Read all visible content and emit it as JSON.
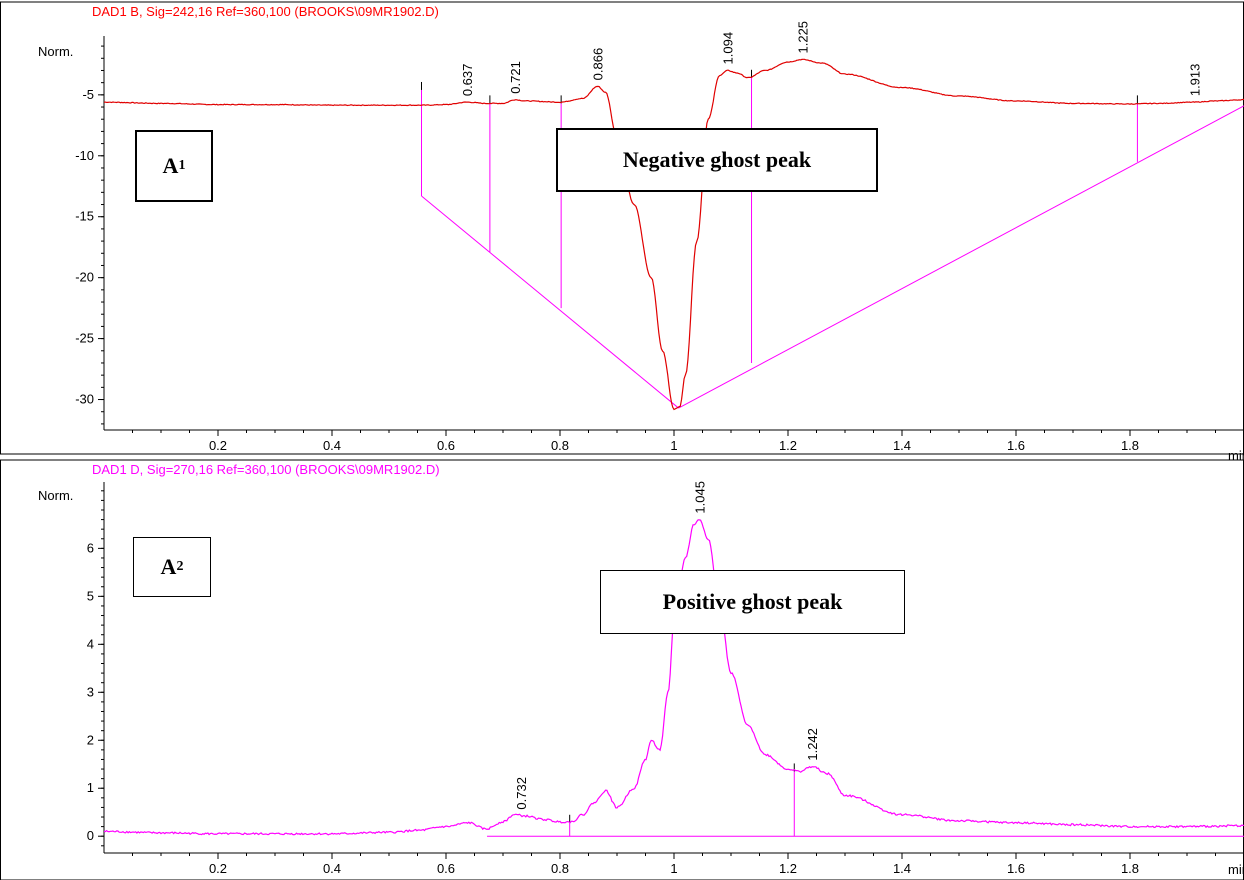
{
  "colors": {
    "a1_trace": "#e00000",
    "a1_title": "#ff0000",
    "a2_trace": "#ff00ff",
    "a2_title": "#ff00ff",
    "baseline": "#ff00ff",
    "axis": "#000000"
  },
  "labels": {
    "a1_id": "A",
    "a1_id_sub": "1",
    "a1_box": "Negative ghost peak",
    "a2_id": "A",
    "a2_id_sub": "2",
    "a2_box": "Positive ghost peak"
  },
  "chart_data": [
    {
      "type": "line",
      "title": "DAD1 B, Sig=242,16 Ref=360,100 (BROOKS\\09MR1902.D)",
      "ylabel": "Norm.",
      "xlabel": "min",
      "xlim": [
        0.0,
        2.0
      ],
      "ylim": [
        -32.5,
        -0.5
      ],
      "x_ticks": [
        0.2,
        0.4,
        0.6,
        0.8,
        1,
        1.2,
        1.4,
        1.6,
        1.8
      ],
      "y_ticks": [
        -5,
        -10,
        -15,
        -20,
        -25,
        -30
      ],
      "peak_labels": [
        "0.637",
        "0.721",
        "0.866",
        "1.094",
        "1.225",
        "1.913"
      ],
      "series": [
        {
          "x": [
            0.0,
            0.1,
            0.2,
            0.3,
            0.4,
            0.5,
            0.56,
            0.6,
            0.637,
            0.67,
            0.7,
            0.721,
            0.74,
            0.8,
            0.84,
            0.866,
            0.88,
            0.9,
            0.93,
            0.96,
            0.98,
            1.0,
            1.01,
            1.02,
            1.04,
            1.06,
            1.08,
            1.094,
            1.11,
            1.13,
            1.16,
            1.2,
            1.225,
            1.26,
            1.3,
            1.4,
            1.5,
            1.6,
            1.7,
            1.8,
            1.85,
            1.913,
            1.95,
            2.0
          ],
          "y": [
            -5.6,
            -5.7,
            -5.8,
            -5.8,
            -5.85,
            -5.85,
            -5.85,
            -5.8,
            -5.6,
            -5.7,
            -5.7,
            -5.4,
            -5.5,
            -5.6,
            -5.3,
            -4.3,
            -4.8,
            -8.5,
            -14,
            -20,
            -26,
            -30.8,
            -30.6,
            -28,
            -17,
            -7,
            -3.4,
            -3.0,
            -3.2,
            -3.6,
            -3.0,
            -2.3,
            -2.1,
            -2.4,
            -3.3,
            -4.4,
            -5.1,
            -5.5,
            -5.7,
            -5.75,
            -5.7,
            -5.6,
            -5.5,
            -5.4
          ]
        }
      ],
      "baselines": [
        {
          "x": [
            0.557,
            1.008
          ],
          "y": [
            -13.3,
            -30.7
          ]
        },
        {
          "x": [
            1.008,
            2.0
          ],
          "y": [
            -30.7,
            -5.9
          ]
        }
      ],
      "drop_lines": [
        {
          "x": 0.557,
          "y_top": -4.6,
          "y_bottom": -13.3
        },
        {
          "x": 0.677,
          "y_top": -5.7,
          "y_bottom": -17.9
        },
        {
          "x": 0.802,
          "y_top": -5.7,
          "y_bottom": -22.5
        },
        {
          "x": 1.136,
          "y_top": -3.6,
          "y_bottom": -27.0
        },
        {
          "x": 1.813,
          "y_top": -5.7,
          "y_bottom": -10.5
        }
      ]
    },
    {
      "type": "line",
      "title": "DAD1 D, Sig=270,16 Ref=360,100 (BROOKS\\09MR1902.D)",
      "ylabel": "Norm.",
      "xlabel": "min",
      "xlim": [
        0.0,
        2.0
      ],
      "ylim": [
        -0.35,
        7.3
      ],
      "x_ticks": [
        0.2,
        0.4,
        0.6,
        0.8,
        1,
        1.2,
        1.4,
        1.6,
        1.8
      ],
      "y_ticks": [
        0,
        1,
        2,
        3,
        4,
        5,
        6
      ],
      "peak_labels": [
        "0.732",
        "1.045",
        "1.242"
      ],
      "series": [
        {
          "x": [
            0.0,
            0.1,
            0.2,
            0.3,
            0.4,
            0.5,
            0.55,
            0.6,
            0.64,
            0.67,
            0.7,
            0.72,
            0.74,
            0.77,
            0.8,
            0.82,
            0.84,
            0.86,
            0.88,
            0.9,
            0.93,
            0.95,
            0.96,
            0.975,
            0.99,
            1.0,
            1.02,
            1.035,
            1.045,
            1.06,
            1.08,
            1.1,
            1.13,
            1.16,
            1.2,
            1.22,
            1.242,
            1.27,
            1.3,
            1.4,
            1.5,
            1.6,
            1.7,
            1.8,
            1.9,
            2.0
          ],
          "y": [
            0.1,
            0.07,
            0.05,
            0.05,
            0.05,
            0.08,
            0.12,
            0.2,
            0.28,
            0.15,
            0.3,
            0.45,
            0.42,
            0.35,
            0.3,
            0.3,
            0.45,
            0.7,
            0.95,
            0.6,
            1.0,
            1.6,
            2.0,
            1.8,
            3.0,
            4.5,
            5.8,
            6.5,
            6.6,
            6.2,
            4.8,
            3.4,
            2.3,
            1.7,
            1.4,
            1.35,
            1.45,
            1.3,
            0.85,
            0.45,
            0.32,
            0.28,
            0.24,
            0.2,
            0.2,
            0.22
          ]
        }
      ],
      "baselines": [
        {
          "x": [
            0.672,
            2.0
          ],
          "y": [
            0.0,
            0.0
          ]
        }
      ],
      "drop_lines": [
        {
          "x": 0.817,
          "y_top": 0.28,
          "y_bottom": 0.0
        },
        {
          "x": 1.211,
          "y_top": 1.35,
          "y_bottom": 0.0
        }
      ]
    }
  ]
}
